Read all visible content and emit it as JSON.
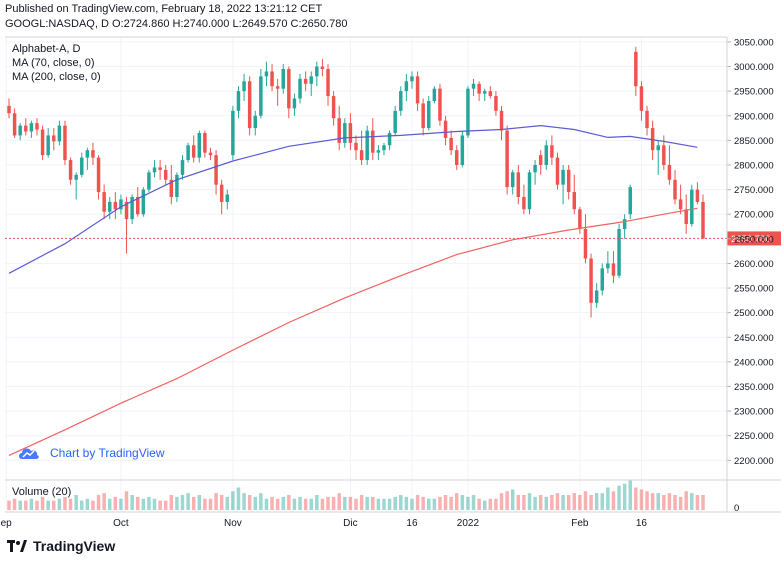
{
  "header": {
    "published": "Published on TradingView.com, February 18, 2022 13:21:12 CET",
    "ohlc": "GOOGL:NASDAQ, D  O:2724.860  H:2740.000  L:2649.570  C:2650.780"
  },
  "legend": {
    "title": "Alphabet-A, D",
    "ma70": "MA (70, close, 0)",
    "ma200": "MA (200, close, 0)",
    "volume": "Volume (20)"
  },
  "attribution": "Chart by TradingView",
  "footer": "TradingView",
  "colors": {
    "up": "#26a69a",
    "down": "#ef5350",
    "ma70": "#5b5bd6",
    "ma200": "#f26161",
    "last": "#ef5350"
  },
  "chart_data": {
    "type": "candlestick",
    "symbol": "GOOGL:NASDAQ",
    "ylim": [
      2160,
      3060
    ],
    "y_ticks": [
      "2200.000",
      "2250.000",
      "2300.000",
      "2350.000",
      "2400.000",
      "2450.000",
      "2500.000",
      "2550.000",
      "2600.000",
      "2650.000",
      "2700.000",
      "2750.000",
      "2800.000",
      "2850.000",
      "2900.000",
      "2950.000",
      "3000.000",
      "3050.000"
    ],
    "x_ticks": [
      {
        "label": "ep",
        "index": -0.5
      },
      {
        "label": "Oct",
        "index": 20
      },
      {
        "label": "Nov",
        "index": 40
      },
      {
        "label": "Dic",
        "index": 61
      },
      {
        "label": "16",
        "index": 72
      },
      {
        "label": "2022",
        "index": 82
      },
      {
        "label": "Feb",
        "index": 102
      },
      {
        "label": "16",
        "index": 113
      }
    ],
    "last_price": 2650.78,
    "last_price_label": "2650.780",
    "volume_axis_label": "0",
    "candles": [
      [
        2920,
        2935,
        2895,
        2905
      ],
      [
        2905,
        2915,
        2855,
        2860
      ],
      [
        2860,
        2885,
        2850,
        2880
      ],
      [
        2880,
        2895,
        2860,
        2868
      ],
      [
        2868,
        2890,
        2855,
        2885
      ],
      [
        2885,
        2895,
        2860,
        2872
      ],
      [
        2872,
        2880,
        2810,
        2820
      ],
      [
        2820,
        2875,
        2815,
        2860
      ],
      [
        2860,
        2875,
        2830,
        2848
      ],
      [
        2848,
        2890,
        2840,
        2880
      ],
      [
        2880,
        2890,
        2800,
        2810
      ],
      [
        2810,
        2815,
        2760,
        2770
      ],
      [
        2770,
        2785,
        2730,
        2780
      ],
      [
        2780,
        2825,
        2775,
        2815
      ],
      [
        2815,
        2835,
        2790,
        2830
      ],
      [
        2830,
        2845,
        2800,
        2815
      ],
      [
        2815,
        2820,
        2730,
        2745
      ],
      [
        2745,
        2760,
        2690,
        2705
      ],
      [
        2705,
        2735,
        2690,
        2725
      ],
      [
        2725,
        2745,
        2690,
        2710
      ],
      [
        2710,
        2740,
        2700,
        2730
      ],
      [
        2725,
        2735,
        2620,
        2690
      ],
      [
        2690,
        2740,
        2680,
        2735
      ],
      [
        2735,
        2755,
        2695,
        2700
      ],
      [
        2700,
        2755,
        2695,
        2750
      ],
      [
        2750,
        2790,
        2745,
        2785
      ],
      [
        2785,
        2810,
        2775,
        2795
      ],
      [
        2795,
        2810,
        2770,
        2790
      ],
      [
        2790,
        2800,
        2760,
        2770
      ],
      [
        2770,
        2800,
        2720,
        2735
      ],
      [
        2735,
        2785,
        2725,
        2780
      ],
      [
        2780,
        2820,
        2770,
        2810
      ],
      [
        2810,
        2845,
        2805,
        2840
      ],
      [
        2840,
        2860,
        2805,
        2815
      ],
      [
        2815,
        2870,
        2805,
        2865
      ],
      [
        2865,
        2870,
        2815,
        2825
      ],
      [
        2825,
        2835,
        2810,
        2820
      ],
      [
        2820,
        2830,
        2740,
        2760
      ],
      [
        2760,
        2770,
        2700,
        2725
      ],
      [
        2725,
        2750,
        2710,
        2740
      ],
      [
        2820,
        2920,
        2810,
        2910
      ],
      [
        2910,
        2960,
        2895,
        2950
      ],
      [
        2950,
        2985,
        2930,
        2970
      ],
      [
        2970,
        2980,
        2860,
        2875
      ],
      [
        2875,
        2910,
        2860,
        2900
      ],
      [
        2900,
        2995,
        2895,
        2980
      ],
      [
        2980,
        3010,
        2960,
        2990
      ],
      [
        2990,
        3005,
        2950,
        2960
      ],
      [
        2960,
        2975,
        2920,
        2955
      ],
      [
        2955,
        3005,
        2945,
        2995
      ],
      [
        2995,
        3000,
        2895,
        2915
      ],
      [
        2915,
        2945,
        2900,
        2935
      ],
      [
        2935,
        2985,
        2925,
        2975
      ],
      [
        2975,
        2990,
        2950,
        2965
      ],
      [
        2965,
        2990,
        2940,
        2980
      ],
      [
        2980,
        3010,
        2960,
        3000
      ],
      [
        3000,
        3015,
        2980,
        2995
      ],
      [
        2995,
        3005,
        2920,
        2940
      ],
      [
        2940,
        2950,
        2880,
        2895
      ],
      [
        2895,
        2920,
        2830,
        2845
      ],
      [
        2845,
        2895,
        2835,
        2885
      ],
      [
        2885,
        2905,
        2830,
        2845
      ],
      [
        2845,
        2860,
        2810,
        2830
      ],
      [
        2830,
        2870,
        2800,
        2810
      ],
      [
        2810,
        2880,
        2800,
        2870
      ],
      [
        2870,
        2895,
        2810,
        2825
      ],
      [
        2825,
        2840,
        2810,
        2830
      ],
      [
        2830,
        2845,
        2820,
        2840
      ],
      [
        2840,
        2870,
        2830,
        2865
      ],
      [
        2865,
        2920,
        2860,
        2910
      ],
      [
        2910,
        2960,
        2900,
        2950
      ],
      [
        2950,
        2985,
        2930,
        2970
      ],
      [
        2970,
        2990,
        2955,
        2980
      ],
      [
        2980,
        2990,
        2910,
        2925
      ],
      [
        2925,
        2935,
        2860,
        2875
      ],
      [
        2875,
        2940,
        2870,
        2930
      ],
      [
        2930,
        2960,
        2925,
        2955
      ],
      [
        2955,
        2965,
        2880,
        2890
      ],
      [
        2890,
        2900,
        2840,
        2855
      ],
      [
        2855,
        2870,
        2820,
        2830
      ],
      [
        2830,
        2840,
        2790,
        2800
      ],
      [
        2800,
        2870,
        2795,
        2860
      ],
      [
        2860,
        2960,
        2855,
        2955
      ],
      [
        2955,
        2975,
        2940,
        2965
      ],
      [
        2965,
        2970,
        2930,
        2945
      ],
      [
        2945,
        2955,
        2930,
        2950
      ],
      [
        2950,
        2960,
        2935,
        2940
      ],
      [
        2940,
        2950,
        2900,
        2910
      ],
      [
        2910,
        2920,
        2850,
        2870
      ],
      [
        2870,
        2880,
        2740,
        2755
      ],
      [
        2755,
        2790,
        2740,
        2785
      ],
      [
        2785,
        2800,
        2720,
        2735
      ],
      [
        2735,
        2760,
        2700,
        2710
      ],
      [
        2710,
        2790,
        2700,
        2785
      ],
      [
        2785,
        2810,
        2760,
        2800
      ],
      [
        2820,
        2830,
        2780,
        2800
      ],
      [
        2800,
        2850,
        2790,
        2840
      ],
      [
        2840,
        2860,
        2800,
        2815
      ],
      [
        2815,
        2825,
        2750,
        2760
      ],
      [
        2760,
        2800,
        2720,
        2790
      ],
      [
        2790,
        2800,
        2730,
        2745
      ],
      [
        2745,
        2780,
        2700,
        2710
      ],
      [
        2710,
        2715,
        2660,
        2670
      ],
      [
        2670,
        2700,
        2600,
        2610
      ],
      [
        2610,
        2620,
        2490,
        2520
      ],
      [
        2520,
        2560,
        2510,
        2545
      ],
      [
        2545,
        2600,
        2535,
        2590
      ],
      [
        2590,
        2625,
        2580,
        2600
      ],
      [
        2600,
        2625,
        2560,
        2575
      ],
      [
        2575,
        2680,
        2570,
        2670
      ],
      [
        2670,
        2700,
        2650,
        2690
      ],
      [
        2700,
        2760,
        2690,
        2755
      ],
      [
        3030,
        3040,
        2940,
        2960
      ],
      [
        2960,
        2970,
        2890,
        2910
      ],
      [
        2910,
        2920,
        2860,
        2875
      ],
      [
        2875,
        2890,
        2810,
        2830
      ],
      [
        2830,
        2850,
        2780,
        2840
      ],
      [
        2840,
        2860,
        2790,
        2800
      ],
      [
        2800,
        2840,
        2760,
        2770
      ],
      [
        2770,
        2790,
        2720,
        2730
      ],
      [
        2730,
        2760,
        2700,
        2710
      ],
      [
        2710,
        2740,
        2660,
        2680
      ],
      [
        2680,
        2760,
        2675,
        2750
      ],
      [
        2750,
        2765,
        2720,
        2725
      ],
      [
        2724.86,
        2740,
        2649.57,
        2650.78
      ]
    ],
    "volume": [
      5,
      6,
      5,
      5,
      6,
      5,
      7,
      5,
      5,
      6,
      7,
      6,
      8,
      5,
      6,
      5,
      8,
      9,
      6,
      7,
      6,
      10,
      8,
      7,
      6,
      7,
      6,
      5,
      5,
      8,
      7,
      8,
      9,
      7,
      8,
      6,
      6,
      9,
      8,
      7,
      10,
      12,
      9,
      8,
      7,
      9,
      6,
      7,
      6,
      7,
      8,
      6,
      7,
      6,
      6,
      8,
      6,
      7,
      7,
      9,
      7,
      7,
      6,
      8,
      7,
      7,
      6,
      6,
      6,
      7,
      8,
      7,
      6,
      8,
      7,
      6,
      6,
      7,
      8,
      7,
      9,
      8,
      7,
      8,
      6,
      5,
      6,
      6,
      9,
      10,
      11,
      8,
      8,
      9,
      7,
      8,
      7,
      8,
      9,
      8,
      8,
      9,
      8,
      10,
      8,
      9,
      9,
      12,
      10,
      13,
      14,
      16,
      12,
      11,
      10,
      9,
      9,
      8,
      9,
      8,
      7,
      10,
      9,
      8,
      8
    ],
    "ma70": [
      {
        "i": 0,
        "v": 2580
      },
      {
        "i": 10,
        "v": 2640
      },
      {
        "i": 20,
        "v": 2715
      },
      {
        "i": 30,
        "v": 2770
      },
      {
        "i": 40,
        "v": 2808
      },
      {
        "i": 50,
        "v": 2838
      },
      {
        "i": 60,
        "v": 2855
      },
      {
        "i": 70,
        "v": 2860
      },
      {
        "i": 80,
        "v": 2868
      },
      {
        "i": 88,
        "v": 2872
      },
      {
        "i": 95,
        "v": 2880
      },
      {
        "i": 101,
        "v": 2872
      },
      {
        "i": 107,
        "v": 2856
      },
      {
        "i": 111,
        "v": 2858
      },
      {
        "i": 117,
        "v": 2848
      },
      {
        "i": 123,
        "v": 2836
      }
    ],
    "ma200": [
      {
        "i": 0,
        "v": 2210
      },
      {
        "i": 10,
        "v": 2262
      },
      {
        "i": 20,
        "v": 2316
      },
      {
        "i": 30,
        "v": 2366
      },
      {
        "i": 40,
        "v": 2424
      },
      {
        "i": 50,
        "v": 2480
      },
      {
        "i": 60,
        "v": 2530
      },
      {
        "i": 70,
        "v": 2575
      },
      {
        "i": 80,
        "v": 2618
      },
      {
        "i": 90,
        "v": 2648
      },
      {
        "i": 100,
        "v": 2668
      },
      {
        "i": 110,
        "v": 2685
      },
      {
        "i": 117,
        "v": 2700
      },
      {
        "i": 123,
        "v": 2712
      }
    ]
  }
}
